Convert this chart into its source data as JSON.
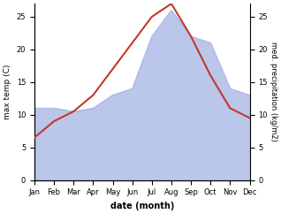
{
  "months": [
    "Jan",
    "Feb",
    "Mar",
    "Apr",
    "May",
    "Jun",
    "Jul",
    "Aug",
    "Sep",
    "Oct",
    "Nov",
    "Dec"
  ],
  "month_indices": [
    0,
    1,
    2,
    3,
    4,
    5,
    6,
    7,
    8,
    9,
    10,
    11
  ],
  "max_temp": [
    6.5,
    9.0,
    10.5,
    13.0,
    17.0,
    21.0,
    25.0,
    27.0,
    22.0,
    16.0,
    11.0,
    9.5
  ],
  "precipitation": [
    11.0,
    11.0,
    10.5,
    11.0,
    13.0,
    14.0,
    22.0,
    26.0,
    22.0,
    21.0,
    14.0,
    13.0
  ],
  "temp_color": "#c0392b",
  "precip_color": "#b0bce8",
  "temp_ylim": [
    0,
    27
  ],
  "precip_ylim": [
    0,
    27
  ],
  "temp_yticks": [
    0,
    5,
    10,
    15,
    20,
    25
  ],
  "precip_yticks": [
    0,
    5,
    10,
    15,
    20,
    25
  ],
  "xlabel": "date (month)",
  "ylabel_left": "max temp (C)",
  "ylabel_right": "med. precipitation (kg/m2)",
  "bg_color": "#ffffff",
  "line_width": 1.5
}
